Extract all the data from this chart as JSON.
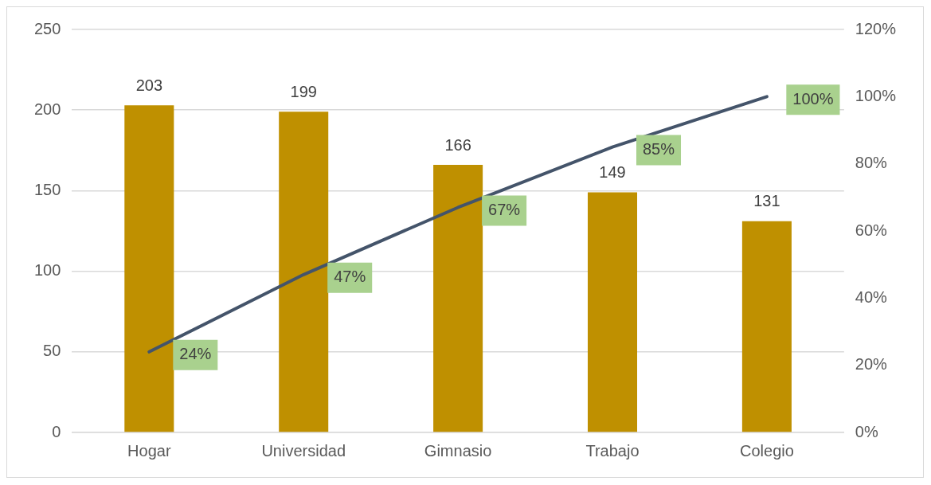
{
  "chart_data": {
    "type": "bar",
    "categories": [
      "Hogar",
      "Universidad",
      "Gimnasio",
      "Trabajo",
      "Colegio"
    ],
    "series": [
      {
        "color": "#bf9000",
        "values": [
          203,
          199,
          166,
          149,
          131
        ],
        "value_labels": [
          "203",
          "199",
          "166",
          "149",
          "131"
        ]
      },
      {
        "type": "line",
        "axis": "y2",
        "color": "#44546a",
        "values": [
          24,
          47,
          67,
          85,
          100
        ],
        "value_labels": [
          "24%",
          "47%",
          "67%",
          "85%",
          "100%"
        ],
        "marker": "none"
      }
    ],
    "ylim": [
      0,
      250
    ],
    "yticks": [
      0,
      50,
      100,
      150,
      200,
      250
    ],
    "y2lim": [
      0,
      120
    ],
    "y2ticks": [
      {
        "value": 0,
        "label": "0%"
      },
      {
        "value": 20,
        "label": "20%"
      },
      {
        "value": 40,
        "label": "40%"
      },
      {
        "value": 60,
        "label": "60%"
      },
      {
        "value": 80,
        "label": "80%"
      },
      {
        "value": 100,
        "label": "100%"
      },
      {
        "value": 120,
        "label": "120%"
      }
    ],
    "grid": "y"
  }
}
